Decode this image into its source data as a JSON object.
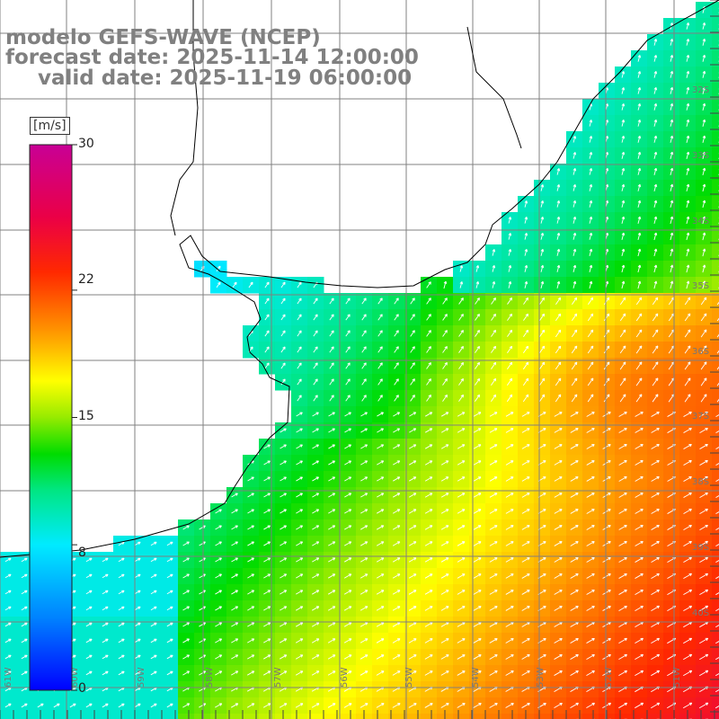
{
  "title": {
    "line1": "modelo GEFS-WAVE (NCEP)",
    "line2": "forecast date: 2025-11-14 12:00:00",
    "line3": "valid date: 2025-11-19 06:00:00"
  },
  "colorbar": {
    "unit": "[m/s]",
    "ticks": [
      "30",
      "22",
      "15",
      "8",
      "0"
    ],
    "values": [
      30,
      22,
      15,
      8,
      0
    ]
  },
  "lat_labels": [
    "32S",
    "33S",
    "34S",
    "35S",
    "36S",
    "37S",
    "38S",
    "39S",
    "40S"
  ],
  "lon_labels": [
    "61W",
    "60W",
    "59W",
    "58W",
    "57W",
    "56W",
    "55W",
    "54W",
    "53W",
    "52W",
    "51W"
  ],
  "colors": {
    "land": "#ffffff",
    "grid": "#808080",
    "coast": "#000000",
    "arrow": "#ffffff"
  }
}
